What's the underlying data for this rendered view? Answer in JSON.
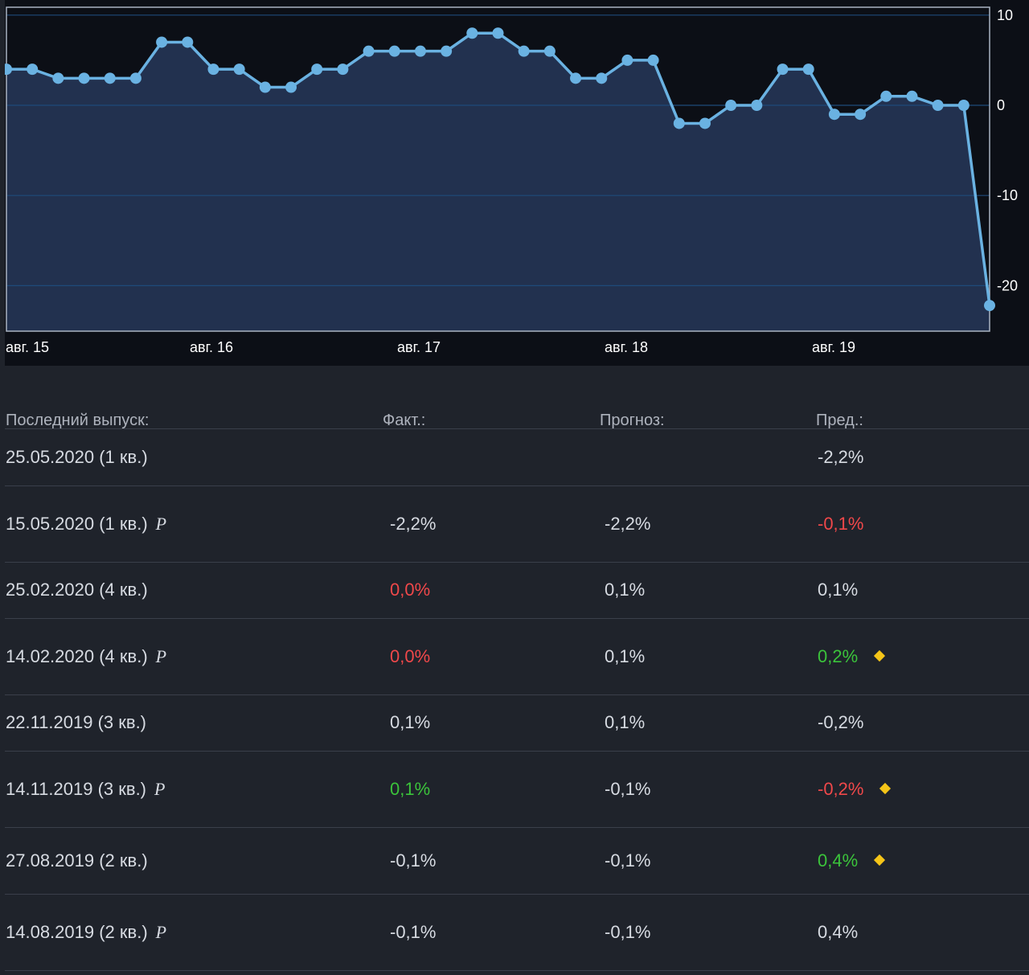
{
  "chart_data": {
    "type": "line",
    "x_tick_labels": [
      "авг. 15",
      "авг. 16",
      "авг. 17",
      "авг. 18",
      "авг. 19"
    ],
    "y_tick_labels": [
      "10",
      "0",
      "-10",
      "-20"
    ],
    "y_ticks": [
      10,
      0,
      -10,
      -20
    ],
    "ylim": [
      -25,
      11
    ],
    "grid": true,
    "series": [
      {
        "values": [
          4,
          4,
          3,
          3,
          3,
          3,
          7,
          7,
          4,
          4,
          2,
          2,
          4,
          4,
          6,
          6,
          6,
          6,
          8,
          8,
          6,
          6,
          3,
          3,
          5,
          5,
          -2,
          -2,
          0,
          0,
          4,
          4,
          -1,
          -1,
          1,
          1,
          0,
          0,
          -22.2
        ]
      }
    ],
    "colors": {
      "line": "#6ab2e2",
      "area": "#22314f",
      "grid": "#1e4a7a",
      "background": "#0c0f16"
    }
  },
  "table": {
    "headers": {
      "date": "Последний выпуск:",
      "fact": "Факт.:",
      "forecast": "Прогноз:",
      "prev": "Пред.:"
    },
    "rows": [
      {
        "date": "25.05.2020 (1 кв.)",
        "p": "",
        "fact": "",
        "fact_color": "neutral",
        "forecast": "",
        "prev": "-2,2%",
        "prev_color": "neutral",
        "diamond": false
      },
      {
        "date": "15.05.2020 (1 кв.)",
        "p": "P",
        "fact": "-2,2%",
        "fact_color": "neutral",
        "forecast": "-2,2%",
        "prev": "-0,1%",
        "prev_color": "red",
        "diamond": false
      },
      {
        "date": "25.02.2020 (4 кв.)",
        "p": "",
        "fact": "0,0%",
        "fact_color": "red",
        "forecast": "0,1%",
        "prev": "0,1%",
        "prev_color": "neutral",
        "diamond": false
      },
      {
        "date": "14.02.2020 (4 кв.)",
        "p": "P",
        "fact": "0,0%",
        "fact_color": "red",
        "forecast": "0,1%",
        "prev": "0,2%",
        "prev_color": "green",
        "diamond": true
      },
      {
        "date": "22.11.2019 (3 кв.)",
        "p": "",
        "fact": "0,1%",
        "fact_color": "neutral",
        "forecast": "0,1%",
        "prev": "-0,2%",
        "prev_color": "neutral",
        "diamond": false
      },
      {
        "date": "14.11.2019 (3 кв.)",
        "p": "P",
        "fact": "0,1%",
        "fact_color": "green",
        "forecast": "-0,1%",
        "prev": "-0,2%",
        "prev_color": "red",
        "diamond": true
      },
      {
        "date": "27.08.2019 (2 кв.)",
        "p": "",
        "fact": "-0,1%",
        "fact_color": "neutral",
        "forecast": "-0,1%",
        "prev": "0,4%",
        "prev_color": "green",
        "diamond": true
      },
      {
        "date": "14.08.2019 (2 кв.)",
        "p": "P",
        "fact": "-0,1%",
        "fact_color": "neutral",
        "forecast": "-0,1%",
        "prev": "0,4%",
        "prev_color": "neutral",
        "diamond": false
      }
    ],
    "icon_names": {
      "diamond": "revised-diamond-icon",
      "p": "preliminary-p-icon"
    }
  }
}
